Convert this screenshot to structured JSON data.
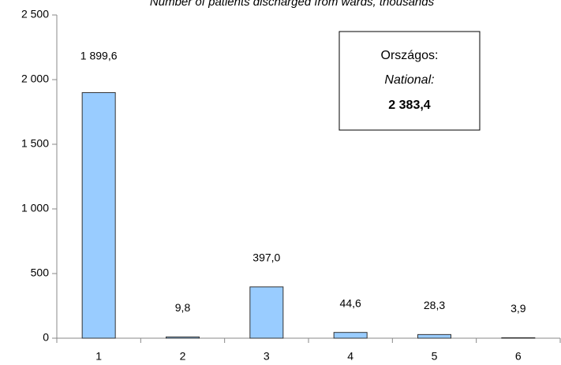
{
  "chart_data": {
    "type": "bar",
    "title": "Number of patients discharged from wards, thousands",
    "categories": [
      "1",
      "2",
      "3",
      "4",
      "5",
      "6"
    ],
    "values": [
      1899.6,
      9.8,
      397.0,
      44.6,
      28.3,
      3.9
    ],
    "value_labels": [
      "1 899,6",
      "9,8",
      "397,0",
      "44,6",
      "28,3",
      "3,9"
    ],
    "color": "#99ccff",
    "ylim": [
      0,
      2500
    ],
    "yticks": [
      0,
      500,
      {
        "value": 1000,
        "label": "1 000"
      },
      {
        "value": 1500,
        "label": "1 500"
      },
      {
        "value": 2000,
        "label": "2 000"
      },
      {
        "value": 2500,
        "label": "2 500"
      }
    ],
    "grid": false,
    "annotation": {
      "line1": "Országos:",
      "line2": "National:",
      "total": "2 383,4"
    }
  }
}
